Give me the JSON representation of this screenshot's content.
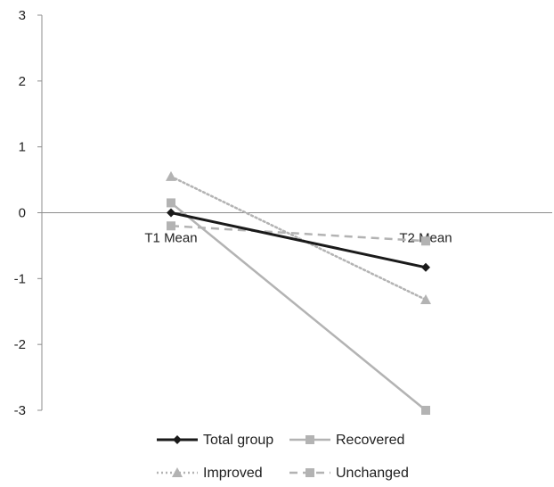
{
  "chart_data": {
    "type": "line",
    "categories": [
      "T1 Mean",
      "T2 Mean"
    ],
    "ylim": [
      -3,
      3
    ],
    "yticks": [
      3,
      2,
      1,
      0,
      -1,
      -2,
      -3
    ],
    "grid": false,
    "legend_position": "bottom",
    "series": [
      {
        "name": "Total group",
        "values": [
          0.0,
          -0.83
        ],
        "color": "#1a1a1a",
        "marker": "diamond",
        "dash": "solid"
      },
      {
        "name": "Recovered",
        "values": [
          0.15,
          -3.0
        ],
        "color": "#b3b3b3",
        "marker": "square",
        "dash": "solid"
      },
      {
        "name": "Improved",
        "values": [
          0.55,
          -1.32
        ],
        "color": "#b3b3b3",
        "marker": "triangle",
        "dash": "dotted"
      },
      {
        "name": "Unchanged",
        "values": [
          -0.2,
          -0.43
        ],
        "color": "#b3b3b3",
        "marker": "square",
        "dash": "dashed"
      }
    ]
  }
}
